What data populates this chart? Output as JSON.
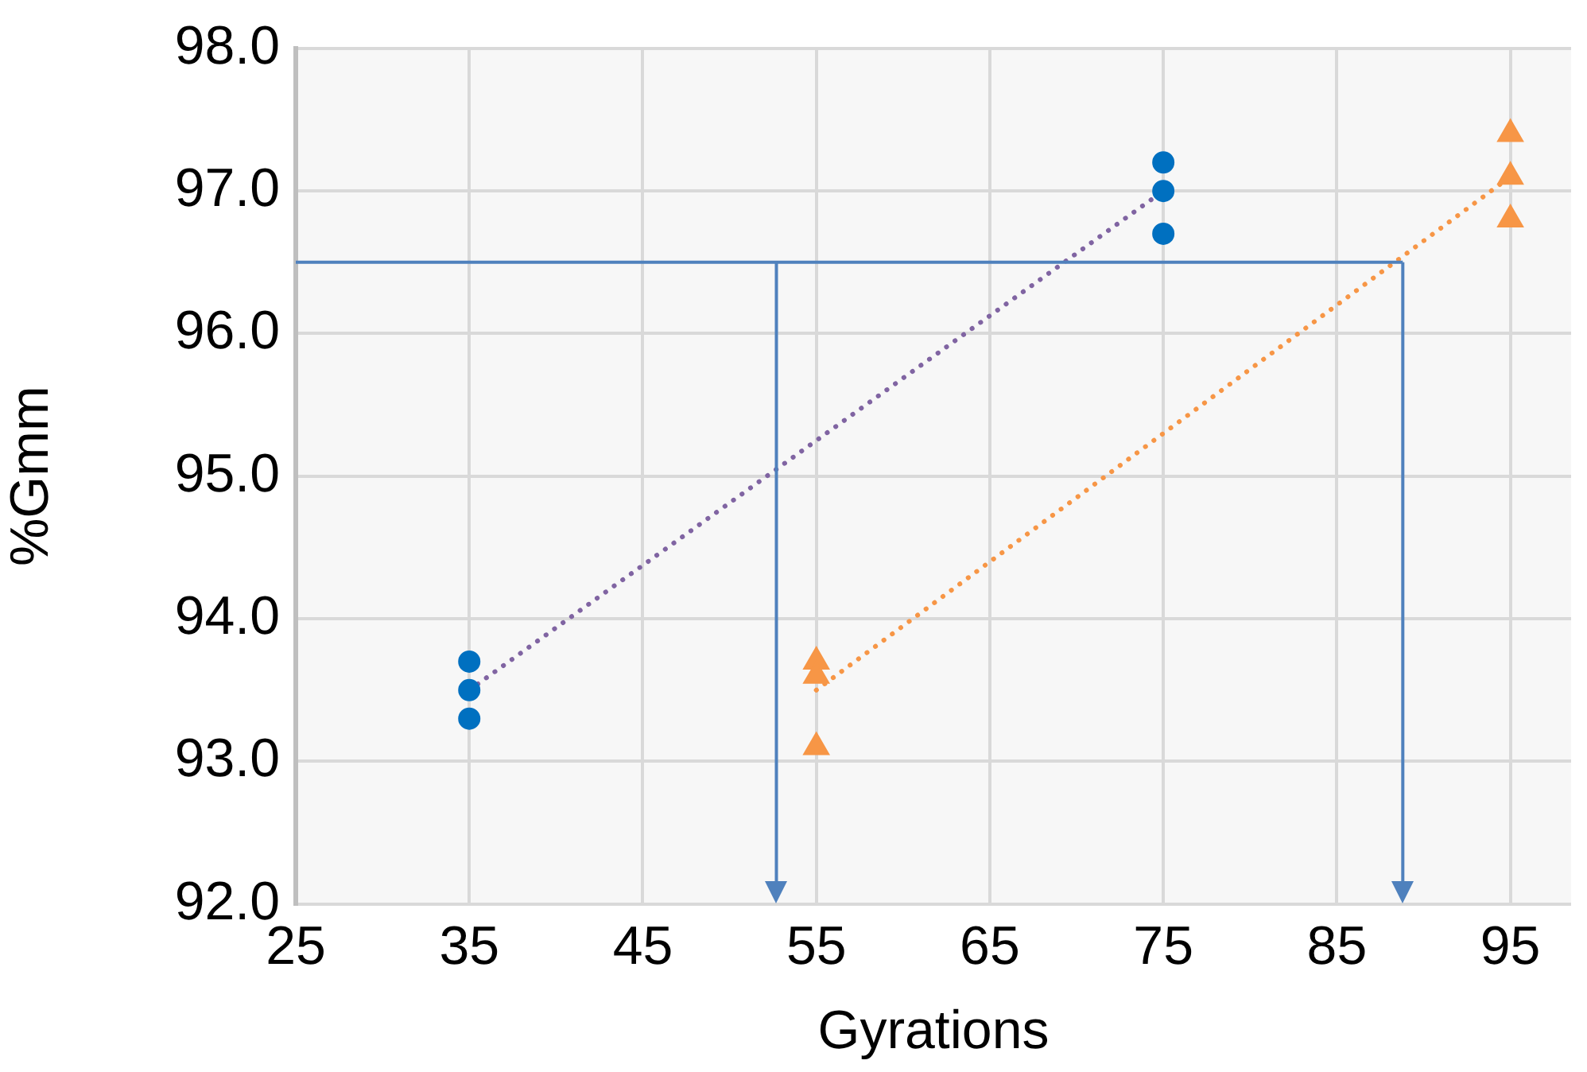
{
  "chart_data": {
    "type": "scatter",
    "xlabel": "Gyrations",
    "ylabel": "%Gmm",
    "xlim": [
      25,
      98.5
    ],
    "xticks": [
      25,
      35,
      45,
      55,
      65,
      75,
      85,
      95
    ],
    "ylim": [
      92,
      98
    ],
    "yticks": [
      {
        "value": 92,
        "label": "92.0"
      },
      {
        "value": 93,
        "label": "93.0"
      },
      {
        "value": 94,
        "label": "94.0"
      },
      {
        "value": 95,
        "label": "95.0"
      },
      {
        "value": 96,
        "label": "96.0"
      },
      {
        "value": 97,
        "label": "97.0"
      },
      {
        "value": 98,
        "label": "98.0"
      }
    ],
    "grid": true,
    "legend": false,
    "series": [
      {
        "marker": "circle",
        "color": "#0070c0",
        "x": [
          35,
          35,
          35,
          75,
          75,
          75
        ],
        "values": [
          93.7,
          93.5,
          93.3,
          97.2,
          97.0,
          96.7
        ]
      },
      {
        "marker": "triangle",
        "color": "#f79646",
        "x": [
          55,
          55,
          55,
          95,
          95,
          95
        ],
        "values": [
          93.7,
          93.6,
          93.1,
          97.4,
          97.1,
          96.8
        ]
      },
      {
        "type": "line",
        "marker": "none",
        "line_style": "dotted",
        "color": "#8064a2",
        "x": [
          35,
          75
        ],
        "values": [
          93.5,
          97.0
        ]
      },
      {
        "type": "line",
        "marker": "none",
        "line_style": "dotted",
        "color": "#f79646",
        "x": [
          55,
          95
        ],
        "values": [
          93.5,
          97.1
        ]
      }
    ],
    "ref_lines": [
      {
        "axis": "y",
        "value": 96.5,
        "color": "#4f81bd"
      },
      {
        "axis": "x",
        "value": 52.7,
        "color": "#4f81bd"
      },
      {
        "axis": "x",
        "value": 88.8,
        "color": "#4f81bd"
      }
    ]
  }
}
